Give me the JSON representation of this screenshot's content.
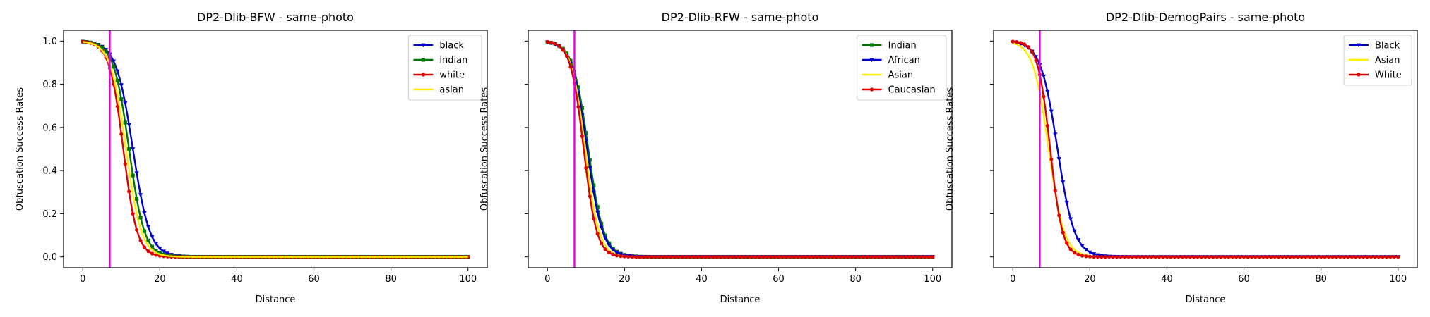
{
  "chart_data": [
    {
      "type": "line",
      "title": "DP2-Dlib-BFW - same-photo",
      "xlabel": "Distance",
      "ylabel": "Obfuscation Success Rates",
      "xlim": [
        -5,
        105
      ],
      "ylim": [
        -0.05,
        1.05
      ],
      "xticks": [
        "0",
        "20",
        "40",
        "60",
        "80",
        "100"
      ],
      "yticks": [
        "0.0",
        "0.2",
        "0.4",
        "0.6",
        "0.8",
        "1.0"
      ],
      "show_ytick_labels": true,
      "threshold_x": 7,
      "threshold_color": "#e600e6",
      "legend_position": "upper right",
      "series": [
        {
          "name": "black",
          "color": "#0000cc",
          "marker": "triangle",
          "center": 13.0,
          "width": 2.2
        },
        {
          "name": "indian",
          "color": "#007700",
          "marker": "square",
          "center": 12.0,
          "width": 2.0
        },
        {
          "name": "white",
          "color": "#dd0000",
          "marker": "circle",
          "center": 10.5,
          "width": 1.8
        },
        {
          "name": "asian",
          "color": "#ffee00",
          "marker": "none",
          "center": 11.2,
          "width": 2.0
        }
      ]
    },
    {
      "type": "line",
      "title": "DP2-Dlib-RFW - same-photo",
      "xlabel": "Distance",
      "ylabel": "Obfuscation Success Rates",
      "xlim": [
        -5,
        105
      ],
      "ylim": [
        -0.05,
        1.05
      ],
      "xticks": [
        "0",
        "20",
        "40",
        "60",
        "80",
        "100"
      ],
      "yticks": [
        "0.0",
        "0.2",
        "0.4",
        "0.6",
        "0.8",
        "1.0"
      ],
      "show_ytick_labels": false,
      "threshold_x": 7,
      "threshold_color": "#e600e6",
      "legend_position": "upper right",
      "series": [
        {
          "name": "Indian",
          "color": "#007700",
          "marker": "square",
          "center": 10.6,
          "width": 2.0
        },
        {
          "name": "African",
          "color": "#0000cc",
          "marker": "triangle",
          "center": 10.3,
          "width": 2.0
        },
        {
          "name": "Asian",
          "color": "#ffee00",
          "marker": "none",
          "center": 9.8,
          "width": 1.8
        },
        {
          "name": "Caucasian",
          "color": "#dd0000",
          "marker": "circle",
          "center": 9.4,
          "width": 1.7
        }
      ]
    },
    {
      "type": "line",
      "title": "DP2-Dlib-DemogPairs - same-photo",
      "xlabel": "Distance",
      "ylabel": "Obfuscation Success Rates",
      "xlim": [
        -5,
        105
      ],
      "ylim": [
        -0.05,
        1.05
      ],
      "xticks": [
        "0",
        "20",
        "40",
        "60",
        "80",
        "100"
      ],
      "yticks": [
        "0.0",
        "0.2",
        "0.4",
        "0.6",
        "0.8",
        "1.0"
      ],
      "show_ytick_labels": false,
      "threshold_x": 7,
      "threshold_color": "#e600e6",
      "legend_position": "upper right",
      "series": [
        {
          "name": "Black",
          "color": "#0000cc",
          "marker": "triangle",
          "center": 11.6,
          "width": 2.2
        },
        {
          "name": "Asian",
          "color": "#ffee00",
          "marker": "none",
          "center": 9.3,
          "width": 2.0
        },
        {
          "name": "White",
          "color": "#dd0000",
          "marker": "circle",
          "center": 9.7,
          "width": 1.6
        }
      ]
    }
  ]
}
